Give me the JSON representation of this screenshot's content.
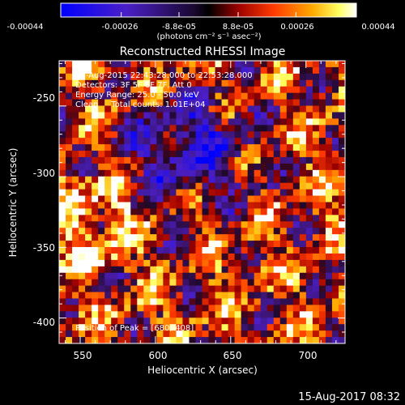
{
  "chart_data": {
    "type": "heatmap",
    "title": "Reconstructed RHESSI Image",
    "xlabel": "Heliocentric X (arcsec)",
    "ylabel": "Heliocentric Y (arcsec)",
    "xlim": [
      536,
      726
    ],
    "ylim": [
      -418,
      -218
    ],
    "x_ticks": [
      550,
      600,
      650,
      700
    ],
    "y_ticks": [
      -250,
      -300,
      -350,
      -400
    ],
    "colorbar": {
      "ticks": [
        "-0.00044",
        "-0.00026",
        "-8.8e-05",
        "8.8e-05",
        "0.00026",
        "0.00044"
      ],
      "unit_label": "(photons cm⁻² s⁻¹ asec⁻²)",
      "range": [
        -0.00044,
        0.00044
      ],
      "colors": [
        "#0000ff",
        "#5522bb",
        "#000000",
        "#aa0000",
        "#ff4400",
        "#ffaa00",
        "#ffff55",
        "#ffffff"
      ]
    },
    "annotations": {
      "time_range": "26-Aug-2015 22:43:28.000 to 22:53:28.000",
      "detectors": "Detectors: 3F 5F 6F 7F, Att 0",
      "energy": "Energy Range: 25.0 - 50.0 keV",
      "clean": "Clean     Total counts: 1.01E+04",
      "peak": "Position of Peak = [680,-408]"
    },
    "peak": {
      "x": 680,
      "y": -408
    },
    "grid": false
  },
  "footer": {
    "date": "15-Aug-2017 08:32"
  }
}
